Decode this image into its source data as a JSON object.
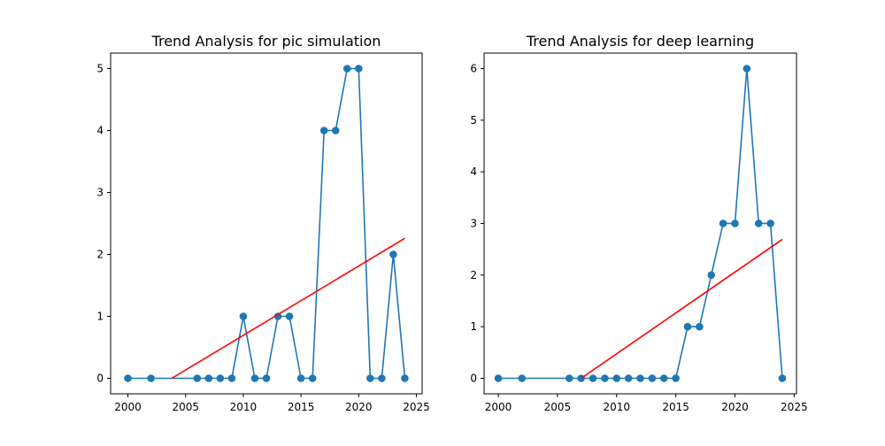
{
  "chart_data": [
    {
      "type": "line",
      "title": "Trend Analysis for pic simulation",
      "xlabel": "",
      "ylabel": "",
      "xlim": [
        1998.5,
        2025.5
      ],
      "ylim": [
        -0.25,
        5.25
      ],
      "xticks": [
        2000,
        2005,
        2010,
        2015,
        2020,
        2025
      ],
      "yticks": [
        0,
        1,
        2,
        3,
        4,
        5
      ],
      "grid": false,
      "series": [
        {
          "color": "#1f77b4",
          "marker": "circle",
          "x": [
            2000,
            2002,
            2006,
            2007,
            2008,
            2009,
            2010,
            2011,
            2012,
            2013,
            2014,
            2015,
            2016,
            2017,
            2018,
            2019,
            2020,
            2021,
            2022,
            2023,
            2024
          ],
          "y": [
            0,
            0,
            0,
            0,
            0,
            0,
            1,
            0,
            0,
            1,
            1,
            0,
            0,
            4,
            4,
            5,
            5,
            0,
            0,
            2,
            0
          ]
        }
      ],
      "trend": {
        "color": "#ff0000",
        "x": [
          2003.8,
          2024
        ],
        "y": [
          0,
          2.26
        ]
      }
    },
    {
      "type": "line",
      "title": "Trend Analysis for deep learning",
      "xlabel": "",
      "ylabel": "",
      "xlim": [
        1998.8,
        2025.2
      ],
      "ylim": [
        -0.3,
        6.3
      ],
      "xticks": [
        2000,
        2005,
        2010,
        2015,
        2020,
        2025
      ],
      "yticks": [
        0,
        1,
        2,
        3,
        4,
        5,
        6
      ],
      "grid": false,
      "series": [
        {
          "color": "#1f77b4",
          "marker": "circle",
          "x": [
            2000,
            2002,
            2006,
            2007,
            2008,
            2009,
            2010,
            2011,
            2012,
            2013,
            2014,
            2015,
            2016,
            2017,
            2018,
            2019,
            2020,
            2021,
            2022,
            2023,
            2024
          ],
          "y": [
            0,
            0,
            0,
            0,
            0,
            0,
            0,
            0,
            0,
            0,
            0,
            0,
            1,
            1,
            2,
            3,
            3,
            6,
            3,
            3,
            0
          ]
        }
      ],
      "trend": {
        "color": "#ff0000",
        "x": [
          2007,
          2024
        ],
        "y": [
          0,
          2.69
        ]
      }
    }
  ]
}
